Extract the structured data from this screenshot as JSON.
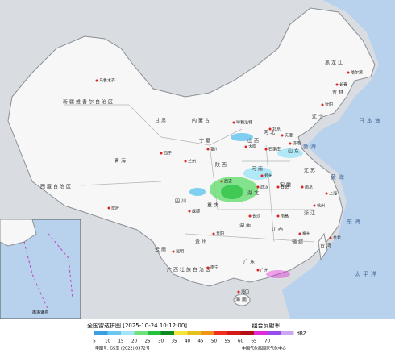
{
  "map": {
    "regions": [
      "新疆维吾尔自治区",
      "西藏自治区",
      "青海",
      "甘肃",
      "内蒙古",
      "黑龙江",
      "吉林",
      "辽宁",
      "宁夏",
      "陕西",
      "山西",
      "河北",
      "山东",
      "河南",
      "四川",
      "重庆",
      "湖北",
      "安徽",
      "江苏",
      "湖南",
      "江西",
      "浙江",
      "贵州",
      "云南",
      "广西壮族自治区",
      "广东",
      "福建",
      "台湾",
      "海南"
    ],
    "cities": [
      "乌鲁木齐",
      "拉萨",
      "西宁",
      "兰州",
      "银川",
      "呼和浩特",
      "哈尔滨",
      "长春",
      "沈阳",
      "北京",
      "天津",
      "太原",
      "石家庄",
      "济南",
      "郑州",
      "西安",
      "成都",
      "武汉",
      "合肥",
      "南京",
      "上海",
      "杭州",
      "长沙",
      "南昌",
      "福州",
      "贵阳",
      "昆明",
      "南宁",
      "广州",
      "台北",
      "海口"
    ],
    "seas": [
      "日本海",
      "渤海",
      "黄海",
      "东海",
      "太平洋"
    ],
    "inset_label": "南海诸岛"
  },
  "legend": {
    "title": "全国雷达拼图 [2025-10-24 10:12:00]",
    "product": "组合反射率",
    "unit": "dBZ",
    "levels": [
      5,
      10,
      15,
      20,
      25,
      30,
      35,
      40,
      45,
      50,
      55,
      60,
      65,
      70
    ],
    "colors": [
      "#3c9ee0",
      "#6ac8f0",
      "#a4e6f6",
      "#6fe07a",
      "#22c23a",
      "#0f8a22",
      "#f2e63a",
      "#e7bf1e",
      "#f2941c",
      "#f0301c",
      "#d41a16",
      "#b00e10",
      "#e02ad8",
      "#9a4ae8",
      "#c8a8f0"
    ],
    "approval": "审图号: GS京 (2022) 0372号",
    "source": "中国气象局国家气象中心"
  }
}
